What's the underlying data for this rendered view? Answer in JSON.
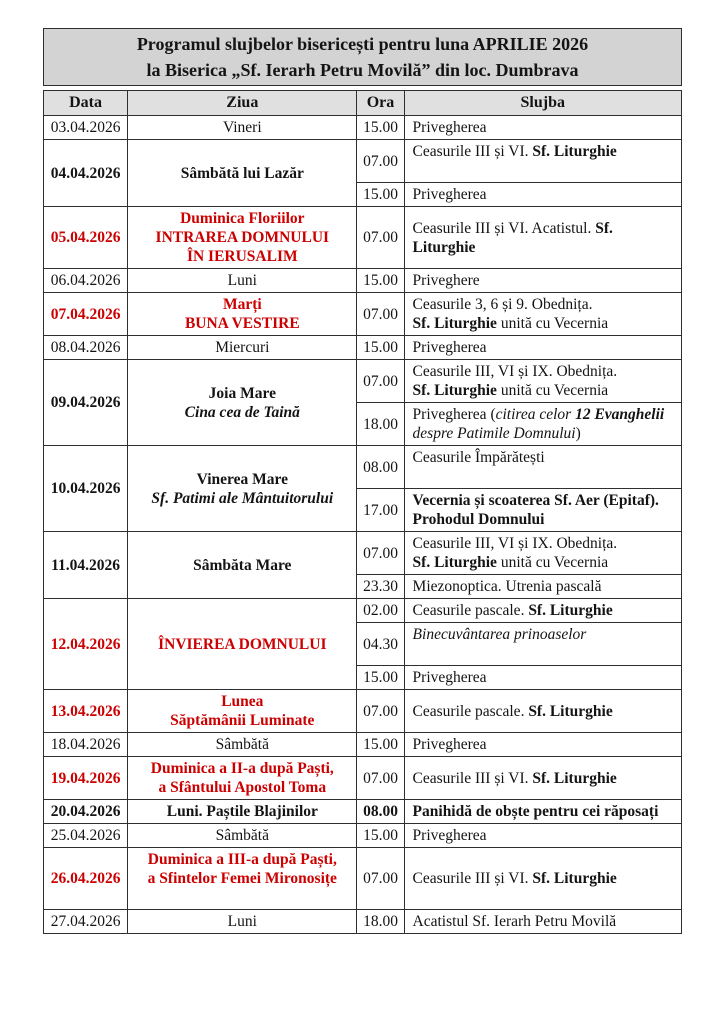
{
  "title": {
    "line1": "Programul slujbelor bisericești pentru luna APRILIE 2026",
    "line2": "la Biserica „Sf. Ierarh Petru Movilă” din loc. Dumbrava"
  },
  "columns": [
    "Data",
    "Ziua",
    "Ora",
    "Slujba"
  ],
  "colors": {
    "accent_red": "#cc0000",
    "title_background": "#d3d3d3",
    "header_background": "#e0e0e0",
    "border": "#2f2f2f",
    "text": "#141414"
  },
  "rows": [
    {
      "date": "03.04.2026",
      "red": false,
      "bold": false,
      "day_lines": [
        {
          "t": "Vineri"
        }
      ],
      "services": [
        {
          "time": "15.00",
          "lines": [
            [
              {
                "t": "Privegherea"
              }
            ]
          ]
        }
      ]
    },
    {
      "date": "04.04.2026",
      "red": false,
      "bold": true,
      "day_lines": [
        {
          "t": "Sâmbătă lui Lazăr"
        }
      ],
      "services": [
        {
          "time": "07.00",
          "lines": [
            [
              {
                "t": "Ceasurile III și VI. "
              },
              {
                "t": "Sf. Liturghie",
                "b": true
              }
            ],
            []
          ]
        },
        {
          "time": "15.00",
          "lines": [
            [
              {
                "t": "Privegherea"
              }
            ]
          ]
        }
      ]
    },
    {
      "date": "05.04.2026",
      "red": true,
      "bold": true,
      "day_lines": [
        {
          "t": "Duminica Floriilor"
        },
        {
          "t": "INTRAREA DOMNULUI"
        },
        {
          "t": "ÎN IERUSALIM"
        }
      ],
      "services": [
        {
          "time": "07.00",
          "lines": [
            [
              {
                "t": "Ceasurile III și VI. Acatistul. "
              },
              {
                "t": "Sf. Liturghie",
                "b": true
              }
            ]
          ]
        }
      ]
    },
    {
      "date": "06.04.2026",
      "red": false,
      "bold": false,
      "day_lines": [
        {
          "t": "Luni"
        }
      ],
      "services": [
        {
          "time": "15.00",
          "lines": [
            [
              {
                "t": "Priveghere"
              }
            ]
          ]
        }
      ]
    },
    {
      "date": "07.04.2026",
      "red": true,
      "bold": true,
      "day_lines": [
        {
          "t": "Marți"
        },
        {
          "t": "BUNA VESTIRE"
        }
      ],
      "services": [
        {
          "time": "07.00",
          "lines": [
            [
              {
                "t": "Ceasurile 3, 6 și 9. Obednița."
              }
            ],
            [
              {
                "t": "Sf. Liturghie",
                "b": true
              },
              {
                "t": " unită cu Vecernia"
              }
            ]
          ]
        }
      ]
    },
    {
      "date": "08.04.2026",
      "red": false,
      "bold": false,
      "day_lines": [
        {
          "t": "Miercuri"
        }
      ],
      "services": [
        {
          "time": "15.00",
          "lines": [
            [
              {
                "t": "Privegherea"
              }
            ]
          ]
        }
      ]
    },
    {
      "date": "09.04.2026",
      "red": false,
      "bold": true,
      "day_lines": [
        {
          "t": "Joia Mare"
        },
        {
          "t": "Cina cea de Taină",
          "i": true
        }
      ],
      "services": [
        {
          "time": "07.00",
          "lines": [
            [
              {
                "t": "Ceasurile III, VI și IX. Obednița."
              }
            ],
            [
              {
                "t": "Sf. Liturghie",
                "b": true
              },
              {
                "t": " unită cu Vecernia"
              }
            ]
          ]
        },
        {
          "time": "18.00",
          "lines": [
            [
              {
                "t": "Privegherea ("
              },
              {
                "t": "citirea celor ",
                "i": true
              },
              {
                "t": "12 Evanghelii",
                "b": true,
                "i": true
              }
            ],
            [
              {
                "t": "despre Patimile Domnului",
                "i": true
              },
              {
                "t": ")"
              }
            ]
          ]
        }
      ]
    },
    {
      "date": "10.04.2026",
      "red": false,
      "bold": true,
      "day_lines": [
        {
          "t": "Vinerea Mare"
        },
        {
          "t": "Sf. Patimi ale Mântuitorului",
          "i": true
        }
      ],
      "services": [
        {
          "time": "08.00",
          "lines": [
            [
              {
                "t": "Ceasurile Împărătești"
              }
            ],
            []
          ]
        },
        {
          "time": "17.00",
          "lines": [
            [
              {
                "t": "Vecernia și scoaterea Sf. Aer (Epitaf).",
                "b": true
              }
            ],
            [
              {
                "t": "Prohodul Domnului",
                "b": true
              }
            ]
          ]
        }
      ]
    },
    {
      "date": "11.04.2026",
      "red": false,
      "bold": true,
      "day_lines": [
        {
          "t": "Sâmbăta Mare"
        }
      ],
      "services": [
        {
          "time": "07.00",
          "lines": [
            [
              {
                "t": "Ceasurile III, VI și IX. Obednița."
              }
            ],
            [
              {
                "t": "Sf. Liturghie",
                "b": true
              },
              {
                "t": " unită cu Vecernia"
              }
            ]
          ]
        },
        {
          "time": "23.30",
          "lines": [
            [
              {
                "t": "Miezonoptica. Utrenia pascală"
              }
            ]
          ]
        }
      ]
    },
    {
      "date": "12.04.2026",
      "red": true,
      "bold": true,
      "day_lines": [
        {
          "t": "ÎNVIEREA DOMNULUI"
        }
      ],
      "services": [
        {
          "time": "02.00",
          "lines": [
            [
              {
                "t": "Ceasurile pascale. "
              },
              {
                "t": "Sf. Liturghie",
                "b": true
              }
            ]
          ]
        },
        {
          "time": "04.30",
          "lines": [
            [
              {
                "t": "Binecuvântarea prinoaselor",
                "i": true
              }
            ],
            []
          ]
        },
        {
          "time": "15.00",
          "lines": [
            [
              {
                "t": "Privegherea"
              }
            ]
          ]
        }
      ]
    },
    {
      "date": "13.04.2026",
      "red": true,
      "bold": true,
      "day_lines": [
        {
          "t": "Lunea"
        },
        {
          "t": "Săptămânii Luminate"
        }
      ],
      "services": [
        {
          "time": "07.00",
          "lines": [
            [
              {
                "t": "Ceasurile pascale. "
              },
              {
                "t": "Sf. Liturghie",
                "b": true
              }
            ]
          ]
        }
      ]
    },
    {
      "date": "18.04.2026",
      "red": false,
      "bold": false,
      "day_lines": [
        {
          "t": "Sâmbătă"
        }
      ],
      "services": [
        {
          "time": "15.00",
          "lines": [
            [
              {
                "t": "Privegherea"
              }
            ]
          ]
        }
      ]
    },
    {
      "date": "19.04.2026",
      "red": true,
      "bold": true,
      "day_lines": [
        {
          "t": "Duminica a II-a după Paști,"
        },
        {
          "t": "a Sfântului Apostol Toma"
        }
      ],
      "services": [
        {
          "time": "07.00",
          "lines": [
            [
              {
                "t": "Ceasurile III și VI. "
              },
              {
                "t": "Sf. Liturghie",
                "b": true
              }
            ]
          ]
        }
      ]
    },
    {
      "date": "20.04.2026",
      "red": false,
      "bold": true,
      "day_lines": [
        {
          "t": "Luni. Paștile Blajinilor"
        }
      ],
      "services": [
        {
          "time": "08.00",
          "time_bold": true,
          "lines": [
            [
              {
                "t": "Panihidă de obște pentru cei răposați",
                "b": true
              }
            ]
          ]
        }
      ]
    },
    {
      "date": "25.04.2026",
      "red": false,
      "bold": false,
      "day_lines": [
        {
          "t": "Sâmbătă"
        }
      ],
      "services": [
        {
          "time": "15.00",
          "lines": [
            [
              {
                "t": "Privegherea"
              }
            ]
          ]
        }
      ]
    },
    {
      "date": "26.04.2026",
      "red": true,
      "bold": true,
      "day_lines": [
        {
          "t": "Duminica a III-a după Paști,"
        },
        {
          "t": "a Sfintelor Femei Mironosițe"
        },
        {
          "t": ""
        }
      ],
      "services": [
        {
          "time": "07.00",
          "lines": [
            [
              {
                "t": "Ceasurile III și VI. "
              },
              {
                "t": "Sf. Liturghie",
                "b": true
              }
            ]
          ]
        }
      ]
    },
    {
      "date": "27.04.2026",
      "red": false,
      "bold": false,
      "day_lines": [
        {
          "t": "Luni"
        }
      ],
      "services": [
        {
          "time": "18.00",
          "lines": [
            [
              {
                "t": "Acatistul Sf. Ierarh Petru Movilă"
              }
            ]
          ]
        }
      ]
    }
  ]
}
